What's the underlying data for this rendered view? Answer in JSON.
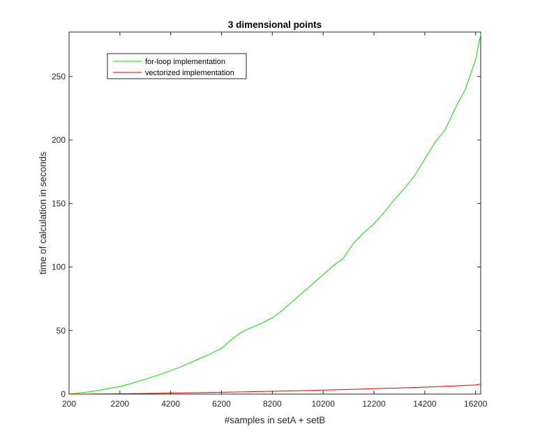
{
  "chart_data": {
    "type": "line",
    "title": "3 dimensional points",
    "xlabel": "#samples in setA + setB",
    "ylabel": "time of calculation in seconds",
    "xlim": [
      200,
      16400
    ],
    "ylim": [
      0,
      285
    ],
    "xticks": [
      200,
      2200,
      4200,
      6200,
      8200,
      10200,
      12200,
      14200,
      16200
    ],
    "yticks": [
      0,
      50,
      100,
      150,
      200,
      250
    ],
    "grid": false,
    "legend_position": "top-left",
    "series": [
      {
        "name": "for-loop implementation",
        "color": "#00e000",
        "x": [
          200,
          600,
          1000,
          1400,
          1800,
          2200,
          2600,
          3000,
          3400,
          3800,
          4200,
          4600,
          5000,
          5400,
          5800,
          6200,
          6600,
          7000,
          7400,
          7800,
          8200,
          8600,
          9000,
          9400,
          9800,
          10200,
          10600,
          11000,
          11400,
          11800,
          12200,
          12600,
          13000,
          13400,
          13800,
          14200,
          14600,
          15000,
          15400,
          15800,
          16200,
          16400
        ],
        "y": [
          0,
          0.8,
          1.8,
          3,
          4.5,
          6,
          8,
          10.5,
          13,
          15.5,
          18.5,
          21.5,
          25,
          28.5,
          32,
          36,
          43,
          49,
          52.5,
          56,
          60,
          66,
          73,
          80,
          87,
          94,
          101,
          107,
          119,
          127,
          134,
          143,
          153,
          162,
          172,
          185,
          198,
          208,
          225,
          240,
          263,
          283
        ]
      },
      {
        "name": "vectorized implementation",
        "color": "#e00000",
        "x": [
          200,
          1200,
          2200,
          3200,
          4200,
          5200,
          6200,
          7200,
          8200,
          9200,
          10200,
          11200,
          12200,
          13200,
          14200,
          15200,
          16200,
          16400
        ],
        "y": [
          0,
          0.1,
          0.3,
          0.5,
          0.8,
          1.1,
          1.4,
          1.8,
          2.2,
          2.6,
          3.1,
          3.6,
          4.2,
          4.8,
          5.5,
          6.3,
          7.2,
          7.8
        ]
      }
    ]
  }
}
